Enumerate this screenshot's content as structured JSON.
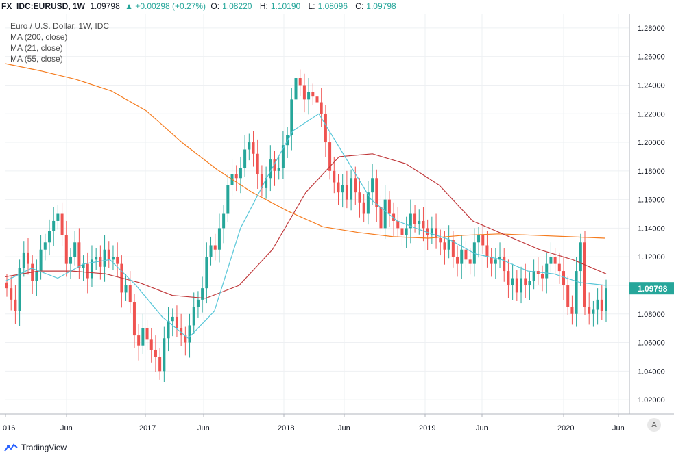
{
  "header": {
    "symbol": "FX_IDC:EURUSD, 1W",
    "price": "1.09798",
    "change": "▲ +0.00298 (+0.27%)",
    "o_label": "O:",
    "o_value": "1.08220",
    "h_label": "H:",
    "h_value": "1.10190",
    "l_label": "L:",
    "l_value": "1.08096",
    "c_label": "C:",
    "c_value": "1.09798"
  },
  "legend": {
    "title": "Euro / U.S. Dollar, 1W, IDC",
    "ma200": "MA (200, close)",
    "ma21": "MA (21, close)",
    "ma55": "MA (55, close)"
  },
  "footer": {
    "brand": "TradingView"
  },
  "auto_scale": "A",
  "colors": {
    "up": "#26a69a",
    "down": "#ef5350",
    "ma200": "#f57c1f",
    "ma21": "#56c6d8",
    "ma55": "#c0393b",
    "last_price_bg": "#26a69a"
  },
  "chart_data": {
    "type": "candlestick",
    "title": "Euro / U.S. Dollar, 1W, IDC",
    "ylim": [
      1.01,
      1.29
    ],
    "y_ticks": [
      "1.28000",
      "1.26000",
      "1.24000",
      "1.22000",
      "1.20000",
      "1.18000",
      "1.16000",
      "1.14000",
      "1.12000",
      "1.10000",
      "1.08000",
      "1.06000",
      "1.04000",
      "1.02000"
    ],
    "x_ticks": [
      "016",
      "Jun",
      "2017",
      "Jun",
      "2018",
      "Jun",
      "2019",
      "Jun",
      "2020",
      "Jun"
    ],
    "last_price": "1.09798",
    "close_series": [
      1.098,
      1.09,
      1.082,
      1.112,
      1.123,
      1.115,
      1.103,
      1.11,
      1.125,
      1.13,
      1.138,
      1.145,
      1.15,
      1.135,
      1.115,
      1.12,
      1.13,
      1.112,
      1.115,
      1.105,
      1.118,
      1.12,
      1.113,
      1.125,
      1.118,
      1.12,
      1.115,
      1.095,
      1.1,
      1.088,
      1.065,
      1.058,
      1.07,
      1.062,
      1.055,
      1.05,
      1.04,
      1.063,
      1.075,
      1.078,
      1.07,
      1.065,
      1.06,
      1.072,
      1.085,
      1.09,
      1.098,
      1.12,
      1.128,
      1.125,
      1.14,
      1.15,
      1.17,
      1.178,
      1.175,
      1.182,
      1.195,
      1.2,
      1.192,
      1.178,
      1.168,
      1.175,
      1.188,
      1.18,
      1.182,
      1.198,
      1.205,
      1.23,
      1.245,
      1.24,
      1.23,
      1.235,
      1.232,
      1.228,
      1.22,
      1.2,
      1.18,
      1.172,
      1.165,
      1.17,
      1.16,
      1.175,
      1.165,
      1.158,
      1.15,
      1.165,
      1.175,
      1.155,
      1.14,
      1.16,
      1.15,
      1.145,
      1.14,
      1.135,
      1.14,
      1.15,
      1.143,
      1.145,
      1.14,
      1.135,
      1.14,
      1.133,
      1.13,
      1.125,
      1.132,
      1.12,
      1.115,
      1.125,
      1.118,
      1.115,
      1.13,
      1.135,
      1.128,
      1.12,
      1.115,
      1.118,
      1.12,
      1.11,
      1.1,
      1.105,
      1.095,
      1.105,
      1.1,
      1.103,
      1.11,
      1.108,
      1.105,
      1.115,
      1.12,
      1.115,
      1.11,
      1.1,
      1.085,
      1.08,
      1.11,
      1.13,
      1.085,
      1.08,
      1.083,
      1.09,
      1.082,
      1.098
    ]
  },
  "ma_series": {
    "ma200": [
      1.255,
      1.25,
      1.244,
      1.236,
      1.222,
      1.2,
      1.181,
      1.165,
      1.152,
      1.141,
      1.137,
      1.134,
      1.133,
      1.135,
      1.136,
      1.135,
      1.134,
      1.133
    ],
    "ma55": [
      1.106,
      1.11,
      1.11,
      1.108,
      1.102,
      1.093,
      1.091,
      1.1,
      1.125,
      1.165,
      1.19,
      1.192,
      1.185,
      1.17,
      1.145,
      1.135,
      1.125,
      1.118,
      1.108
    ],
    "ma21": [
      1.103,
      1.112,
      1.105,
      1.115,
      1.118,
      1.1,
      1.078,
      1.063,
      1.082,
      1.14,
      1.175,
      1.208,
      1.22,
      1.19,
      1.16,
      1.145,
      1.138,
      1.132,
      1.122,
      1.118,
      1.11,
      1.108,
      1.102,
      1.1
    ]
  }
}
